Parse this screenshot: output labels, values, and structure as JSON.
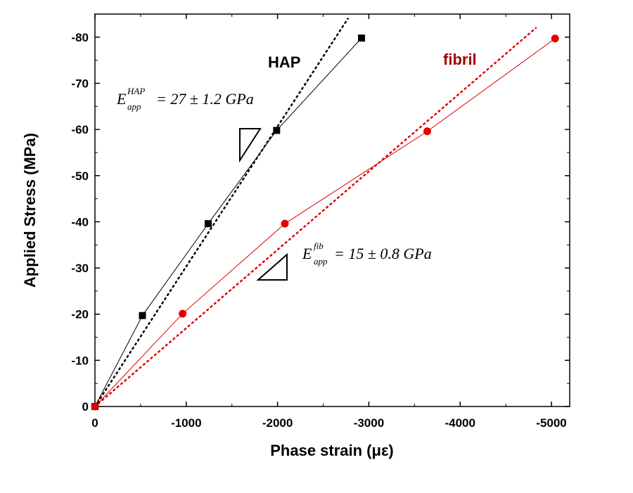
{
  "chart_data": {
    "type": "scatter",
    "xlabel": "Phase strain (με)",
    "ylabel": "Applied Stress (MPa)",
    "xlim": [
      0,
      -5200
    ],
    "ylim": [
      0,
      -85
    ],
    "x_ticks": [
      0,
      -1000,
      -2000,
      -3000,
      -4000,
      -5000
    ],
    "y_ticks": [
      0,
      -10,
      -20,
      -30,
      -40,
      -50,
      -60,
      -70,
      -80
    ],
    "grid": false,
    "legend": "none",
    "series": [
      {
        "name": "HAP",
        "color": "#000000",
        "marker": "square",
        "points": [
          {
            "x": 0,
            "y": 0
          },
          {
            "x": -520,
            "y": -19.7
          },
          {
            "x": -1240,
            "y": -39.6
          },
          {
            "x": -1990,
            "y": -59.8
          },
          {
            "x": -2920,
            "y": -79.8
          }
        ],
        "fit": {
          "from": [
            0,
            0
          ],
          "to": [
            -2770,
            -84
          ]
        },
        "modulus": {
          "symbol": "E",
          "sub": "app",
          "sup": "HAP",
          "value": "= 27 ± 1.2 GPa"
        }
      },
      {
        "name": "fibril",
        "color": "#e00000",
        "marker": "circle",
        "points": [
          {
            "x": 0,
            "y": 0
          },
          {
            "x": -960,
            "y": -20.1
          },
          {
            "x": -2080,
            "y": -39.6
          },
          {
            "x": -3640,
            "y": -59.6
          },
          {
            "x": -5040,
            "y": -79.7
          }
        ],
        "fit": {
          "from": [
            0,
            0
          ],
          "to": [
            -4830,
            -82
          ]
        },
        "modulus": {
          "symbol": "E",
          "sub": "app",
          "sup": "fib",
          "value": "= 15 ± 0.8 GPa"
        }
      }
    ]
  }
}
